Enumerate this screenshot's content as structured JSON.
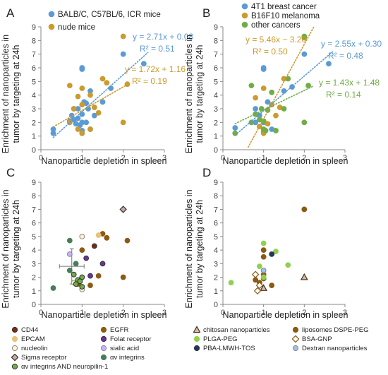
{
  "figure": {
    "panels": [
      {
        "id": "A",
        "y_label_lines": [
          "Enrichment of nanoparticles in",
          "tumor by targeting at 24h"
        ],
        "x_label": "Nanoparticle depletion in  spleen"
      },
      {
        "id": "B",
        "y_label_lines": [
          "Enrichment of nanoparticles in",
          "tumor by targeting at 24h"
        ],
        "x_label": "Nanoparticle depletion in  spleen"
      },
      {
        "id": "C",
        "y_label_lines": [
          "Enrichment of nanoparticles in",
          "tumor by targeting at 24h"
        ],
        "x_label": "Nanoparticle depletion in  spleen"
      },
      {
        "id": "D",
        "y_label_lines": [
          "Enrichment of nanoparticles in",
          "tumor by targeting at 24h"
        ],
        "x_label": "Nanoparticle depletion in  spleen"
      }
    ],
    "legend_c": [
      {
        "label": "CD44",
        "color": "#7b2b0e",
        "marker": "circle",
        "edge": "#333"
      },
      {
        "label": "EGFR",
        "color": "#8b5a14",
        "marker": "circle",
        "edge": "#8b5a14"
      },
      {
        "label": "EPCAM",
        "color": "#e8c17a",
        "marker": "circle",
        "edge": "#e8c17a"
      },
      {
        "label": "Folat receptor",
        "color": "#7030a0",
        "marker": "circle",
        "edge": "#333"
      },
      {
        "label": "nucleolin",
        "color": "#fff2cc",
        "marker": "circle",
        "edge": "#888"
      },
      {
        "label": "sialic acid",
        "color": "#c9b3ff",
        "marker": "circle",
        "edge": "#888"
      },
      {
        "label": "Sigma receptor",
        "color": "#c9a9a6",
        "marker": "diamond",
        "edge": "#333"
      },
      {
        "label": "αv integrins",
        "color": "#4a7c59",
        "marker": "circle",
        "edge": "#4a7c59"
      },
      {
        "label": "αv integrins AND neuropilin-1",
        "color": "#70ad47",
        "marker": "circle",
        "edge": "#333"
      }
    ],
    "legend_d": [
      {
        "label": "chitosan nanoparticles",
        "color": "#e8b98a",
        "marker": "triangle",
        "edge": "#333"
      },
      {
        "label": "liposomes DSPE-PEG",
        "color": "#8b5a14",
        "marker": "circle",
        "edge": "#8b5a14"
      },
      {
        "label": "PLGA-PEG",
        "color": "#92d050",
        "marker": "circle",
        "edge": "#92d050"
      },
      {
        "label": "BSA-GNP",
        "color": "#ffffff",
        "marker": "diamond",
        "edge": "#8b5a14"
      },
      {
        "label": "PBA-LMWH-TOS",
        "color": "#1f3864",
        "marker": "circle",
        "edge": "#333"
      },
      {
        "label": "Dextran nanoparticles",
        "color": "#9dc3e6",
        "marker": "circle",
        "edge": "#888"
      }
    ]
  },
  "chart_data": [
    {
      "panel": "A",
      "type": "scatter",
      "xlabel": "Nanoparticle depletion in  spleen",
      "ylabel": "Enrichment of nanoparticles in tumor by targeting at 24h",
      "xlim": [
        0,
        3
      ],
      "ylim": [
        0,
        9
      ],
      "xticks": [
        0,
        1,
        2,
        3
      ],
      "yticks": [
        0,
        1,
        2,
        3,
        4,
        5,
        6,
        7,
        8,
        9
      ],
      "legend_position": "top-left",
      "series": [
        {
          "name": "BALB/C, C57BL/6, ICR mice",
          "color": "#5b9bd5",
          "points": [
            [
              0.3,
              1.5
            ],
            [
              0.3,
              1.2
            ],
            [
              0.7,
              2.1
            ],
            [
              0.75,
              2.5
            ],
            [
              0.8,
              3.0
            ],
            [
              0.8,
              2.2
            ],
            [
              0.85,
              1.9
            ],
            [
              0.9,
              2.3
            ],
            [
              0.9,
              3.0
            ],
            [
              0.95,
              1.8
            ],
            [
              1.0,
              1.4
            ],
            [
              1.0,
              1.2
            ],
            [
              1.0,
              2.0
            ],
            [
              1.0,
              2.6
            ],
            [
              1.0,
              5.9
            ],
            [
              1.0,
              6.0
            ],
            [
              1.05,
              3.5
            ],
            [
              1.1,
              2.0
            ],
            [
              1.1,
              3.4
            ],
            [
              1.15,
              3.0
            ],
            [
              1.2,
              1.5
            ],
            [
              1.2,
              4.3
            ],
            [
              1.3,
              2.5
            ],
            [
              1.5,
              3.5
            ],
            [
              1.7,
              4.5
            ],
            [
              2.0,
              7.0
            ],
            [
              2.5,
              6.3
            ]
          ]
        },
        {
          "name": "nude mice",
          "color": "#cc9a2e",
          "points": [
            [
              0.7,
              2.0
            ],
            [
              0.7,
              4.7
            ],
            [
              0.8,
              3.0
            ],
            [
              0.9,
              3.9
            ],
            [
              0.9,
              1.5
            ],
            [
              1.0,
              4.5
            ],
            [
              1.0,
              3.3
            ],
            [
              1.0,
              1.2
            ],
            [
              1.2,
              1.5
            ],
            [
              1.2,
              4.0
            ],
            [
              1.3,
              3.1
            ],
            [
              1.4,
              2.7
            ],
            [
              1.5,
              5.2
            ],
            [
              1.6,
              4.9
            ],
            [
              2.0,
              8.3
            ],
            [
              2.0,
              2.0
            ],
            [
              2.1,
              4.8
            ]
          ]
        }
      ],
      "trendlines": [
        {
          "equation": "y = 2.71x + 0.08",
          "r2": "R² = 0.51",
          "slope": 2.71,
          "intercept": 0.08,
          "color": "#5b9bd5",
          "x_range": [
            0.3,
            2.6
          ]
        },
        {
          "equation": "y = 1.72x + 1.16",
          "r2": "R² = 0.19",
          "slope": 1.72,
          "intercept": 1.16,
          "color": "#cc9a2e",
          "x_range": [
            0.3,
            2.1
          ]
        }
      ]
    },
    {
      "panel": "B",
      "type": "scatter",
      "xlabel": "Nanoparticle depletion in  spleen",
      "ylabel": "Enrichment of nanoparticles in tumor by targeting at 24h",
      "xlim": [
        0,
        3
      ],
      "ylim": [
        0,
        9
      ],
      "xticks": [
        0,
        1,
        2,
        3
      ],
      "yticks": [
        0,
        1,
        2,
        3,
        4,
        5,
        6,
        7,
        8,
        9
      ],
      "legend_position": "top",
      "series": [
        {
          "name": "4T1  breast cancer",
          "color": "#5b9bd5",
          "points": [
            [
              0.3,
              1.6
            ],
            [
              0.8,
              2.0
            ],
            [
              0.8,
              3.0
            ],
            [
              0.9,
              2.5
            ],
            [
              1.0,
              6.0
            ],
            [
              1.0,
              5.9
            ],
            [
              1.0,
              2.0
            ],
            [
              1.0,
              1.3
            ],
            [
              1.1,
              3.5
            ],
            [
              1.2,
              1.5
            ],
            [
              1.5,
              4.3
            ],
            [
              1.7,
              4.6
            ],
            [
              2.0,
              7.0
            ],
            [
              2.6,
              6.3
            ]
          ]
        },
        {
          "name": "B16F10 melanoma",
          "color": "#cc9a2e",
          "points": [
            [
              0.8,
              3.8
            ],
            [
              0.9,
              1.7
            ],
            [
              1.0,
              4.5
            ],
            [
              1.0,
              1.2
            ],
            [
              1.1,
              1.9
            ],
            [
              1.2,
              3.3
            ],
            [
              1.3,
              2.5
            ],
            [
              1.4,
              3.1
            ],
            [
              1.5,
              5.2
            ],
            [
              2.0,
              8.2
            ]
          ]
        },
        {
          "name": "other cancers",
          "color": "#70ad47",
          "points": [
            [
              0.3,
              1.2
            ],
            [
              0.7,
              2.0
            ],
            [
              0.7,
              4.7
            ],
            [
              0.8,
              2.6
            ],
            [
              0.9,
              2.2
            ],
            [
              0.95,
              3.0
            ],
            [
              1.0,
              2.1
            ],
            [
              1.0,
              1.5
            ],
            [
              1.05,
              1.4
            ],
            [
              1.1,
              2.9
            ],
            [
              1.2,
              4.2
            ],
            [
              1.3,
              1.4
            ],
            [
              1.5,
              3.0
            ],
            [
              1.6,
              5.2
            ],
            [
              2.0,
              2.0
            ],
            [
              2.0,
              8.3
            ],
            [
              2.1,
              4.7
            ]
          ]
        }
      ],
      "trendlines": [
        {
          "equation": "y = 5.46x − 3.20",
          "r2": "R² = 0.50",
          "slope": 5.46,
          "intercept": -3.2,
          "color": "#cc9a2e",
          "x_range": [
            0.62,
            2.23
          ]
        },
        {
          "equation": "y = 2.55x + 0.30",
          "r2": "R² = 0.48",
          "slope": 2.55,
          "intercept": 0.3,
          "color": "#5b9bd5",
          "x_range": [
            0.3,
            2.7
          ]
        },
        {
          "equation": "y = 1.43x + 1.48",
          "r2": "R² = 0.14",
          "slope": 1.43,
          "intercept": 1.48,
          "color": "#70ad47",
          "x_range": [
            0.3,
            2.2
          ]
        }
      ]
    },
    {
      "panel": "C",
      "type": "scatter",
      "xlabel": "Nanoparticle depletion in  spleen",
      "ylabel": "Enrichment of nanoparticles in tumor by targeting at 24h",
      "xlim": [
        0,
        3
      ],
      "ylim": [
        0,
        9
      ],
      "xticks": [
        0,
        1,
        2,
        3
      ],
      "yticks": [
        0,
        1,
        2,
        3,
        4,
        5,
        6,
        7,
        8,
        9
      ],
      "legend_position": "below",
      "error_bar": {
        "x": 0.75,
        "y": 2.8,
        "x_err": 0.3,
        "y_err": 1.3
      },
      "series": [
        {
          "name": "CD44",
          "points": [
            [
              1.3,
              4.3
            ]
          ]
        },
        {
          "name": "EGFR",
          "points": [
            [
              1.5,
              5.2
            ],
            [
              2.1,
              4.7
            ],
            [
              1.6,
              4.9
            ],
            [
              2.0,
              2.0
            ],
            [
              1.2,
              1.4
            ],
            [
              1.4,
              2.1
            ],
            [
              0.9,
              1.5
            ],
            [
              1.0,
              4.0
            ]
          ]
        },
        {
          "name": "EPCAM",
          "points": [
            [
              1.4,
              5.1
            ]
          ]
        },
        {
          "name": "Folat receptor",
          "points": [
            [
              1.1,
              3.4
            ],
            [
              1.2,
              2.1
            ],
            [
              1.5,
              3.0
            ]
          ]
        },
        {
          "name": "nucleolin",
          "points": [
            [
              1.0,
              5.0
            ],
            [
              1.0,
              1.1
            ],
            [
              0.8,
              1.6
            ]
          ]
        },
        {
          "name": "sialic acid",
          "points": [
            [
              0.7,
              3.7
            ]
          ]
        },
        {
          "name": "Sigma receptor",
          "points": [
            [
              2.0,
              7.0
            ]
          ]
        },
        {
          "name": "αv integrins",
          "points": [
            [
              0.7,
              4.7
            ],
            [
              0.3,
              1.2
            ],
            [
              0.85,
              3.0
            ],
            [
              0.7,
              2.5
            ]
          ]
        },
        {
          "name": "αv integrins AND neuropilin-1",
          "points": [
            [
              0.8,
              2.2
            ],
            [
              0.9,
              1.8
            ],
            [
              1.0,
              2.0
            ],
            [
              0.85,
              1.5
            ],
            [
              1.0,
              1.3
            ],
            [
              0.95,
              1.7
            ]
          ]
        }
      ]
    },
    {
      "panel": "D",
      "type": "scatter",
      "xlabel": "Nanoparticle depletion in  spleen",
      "ylabel": "Enrichment of nanoparticles in tumor by targeting at 24h",
      "xlim": [
        0,
        3
      ],
      "ylim": [
        0,
        9
      ],
      "xticks": [
        0,
        1,
        2,
        3
      ],
      "yticks": [
        0,
        1,
        2,
        3,
        4,
        5,
        6,
        7,
        8,
        9
      ],
      "legend_position": "below",
      "series": [
        {
          "name": "chitosan nanoparticles",
          "points": [
            [
              2.0,
              2.0
            ],
            [
              1.0,
              1.2
            ]
          ]
        },
        {
          "name": "liposomes DSPE-PEG",
          "points": [
            [
              2.0,
              7.0
            ],
            [
              1.0,
              4.0
            ],
            [
              1.0,
              3.5
            ],
            [
              1.0,
              1.9
            ],
            [
              0.9,
              1.6
            ],
            [
              1.2,
              1.4
            ],
            [
              0.8,
              1.8
            ],
            [
              1.0,
              2.2
            ]
          ]
        },
        {
          "name": "PLGA-PEG",
          "points": [
            [
              1.0,
              4.5
            ],
            [
              1.3,
              3.9
            ],
            [
              1.6,
              2.9
            ],
            [
              0.2,
              1.6
            ],
            [
              1.0,
              2.0
            ],
            [
              0.9,
              2.8
            ]
          ]
        },
        {
          "name": "BSA-GNP",
          "points": [
            [
              0.8,
              2.2
            ],
            [
              0.9,
              1.4
            ],
            [
              0.85,
              1.0
            ]
          ]
        },
        {
          "name": "PBA-LMWH-TOS",
          "points": [
            [
              1.2,
              3.7
            ]
          ]
        },
        {
          "name": "Dextran nanoparticles",
          "points": [
            [
              1.0,
              2.5
            ]
          ]
        }
      ]
    }
  ]
}
